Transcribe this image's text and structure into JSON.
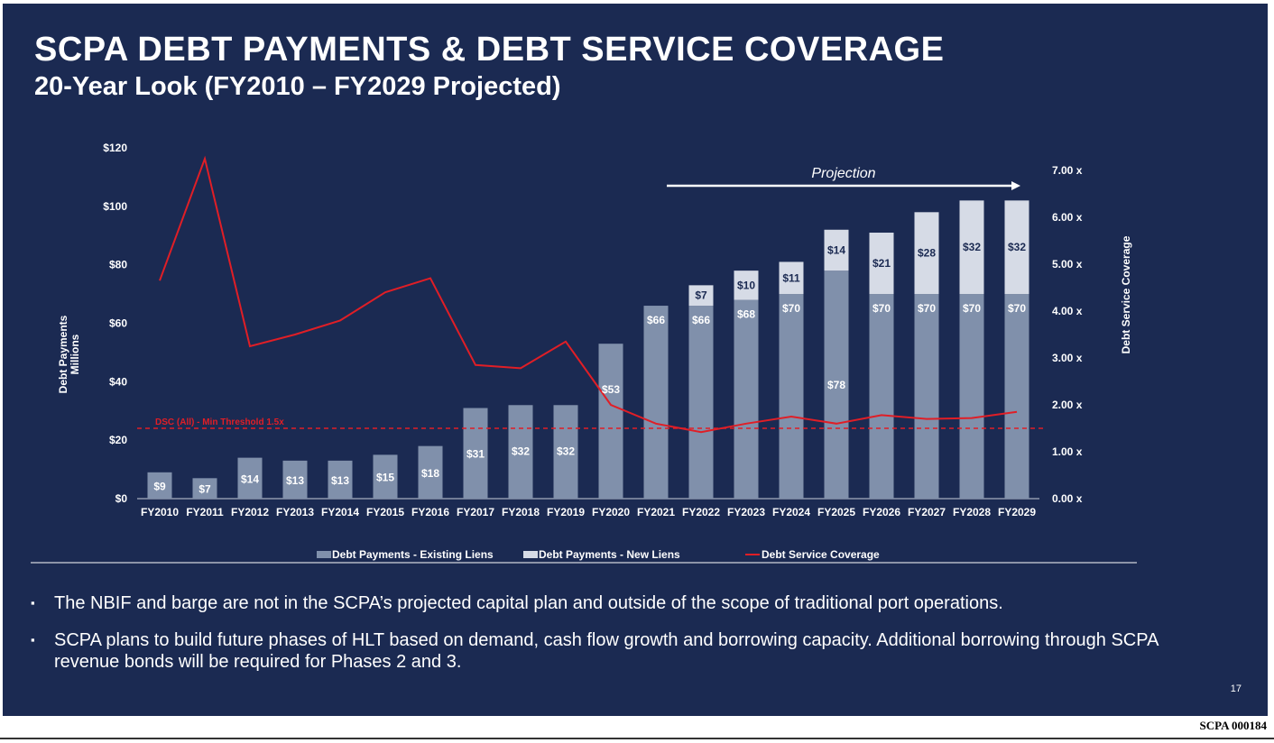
{
  "slide": {
    "title": "SCPA DEBT PAYMENTS & DEBT SERVICE COVERAGE",
    "subtitle": "20-Year Look (FY2010 – FY2029 Projected)",
    "bullets": [
      "The NBIF and barge are not in the SCPA’s projected capital plan and outside of the scope of traditional port operations.",
      "SCPA plans to build future phases of HLT based on demand, cash flow growth and borrowing capacity. Additional borrowing through SCPA revenue bonds will be required for Phases 2 and 3."
    ],
    "bullet_mark": "▪",
    "page_number": "17",
    "bates": "SCPA 000184"
  },
  "chart_data": {
    "type": "bar",
    "stacked": true,
    "categories": [
      "FY2010",
      "FY2011",
      "FY2012",
      "FY2013",
      "FY2014",
      "FY2015",
      "FY2016",
      "FY2017",
      "FY2018",
      "FY2019",
      "FY2020",
      "FY2021",
      "FY2022",
      "FY2023",
      "FY2024",
      "FY2025",
      "FY2026",
      "FY2027",
      "FY2028",
      "FY2029"
    ],
    "series": [
      {
        "name": "Debt Payments - Existing Liens",
        "type": "bar",
        "color": "#8090ab",
        "values": [
          9,
          7,
          14,
          13,
          13,
          15,
          18,
          31,
          32,
          32,
          53,
          66,
          66,
          68,
          70,
          78,
          70,
          70,
          70,
          70
        ]
      },
      {
        "name": "Debt Payments - New Liens",
        "type": "bar",
        "color": "#d6dbe6",
        "values": [
          0,
          0,
          0,
          0,
          0,
          0,
          0,
          0,
          0,
          0,
          0,
          0,
          7,
          10,
          11,
          14,
          21,
          28,
          32,
          32
        ]
      },
      {
        "name": "Debt Service Coverage",
        "type": "line",
        "axis": "right",
        "color": "#e01e26",
        "values": [
          4.65,
          7.25,
          3.25,
          3.5,
          3.8,
          4.4,
          4.7,
          2.85,
          2.78,
          3.35,
          2.0,
          1.6,
          1.42,
          1.6,
          1.75,
          1.6,
          1.78,
          1.7,
          1.72,
          1.85
        ]
      }
    ],
    "bar_labels": {
      "existing": [
        "$9",
        "$7",
        "$14",
        "$13",
        "$13",
        "$15",
        "$18",
        "$31",
        "$32",
        "$32",
        "$53",
        "$66",
        "$66",
        "$68",
        "$70",
        "$78",
        "$70",
        "$70",
        "$70",
        "$70"
      ],
      "new": [
        "",
        "",
        "",
        "",
        "",
        "",
        "",
        "",
        "",
        "",
        "",
        "",
        "$7",
        "$10",
        "$11",
        "$14",
        "$21",
        "$28",
        "$32",
        "$32"
      ]
    },
    "y_left": {
      "label_line1": "Debt Payments",
      "label_line2": "Millions",
      "ylim": [
        0,
        120
      ],
      "ticks": [
        0,
        20,
        40,
        60,
        80,
        100,
        120
      ],
      "tick_labels": [
        "$0",
        "$20",
        "$40",
        "$60",
        "$80",
        "$100",
        "$120"
      ]
    },
    "y_right": {
      "label": "Debt Service Coverage",
      "ylim": [
        0,
        7
      ],
      "ticks": [
        0,
        1,
        2,
        3,
        4,
        5,
        6,
        7
      ],
      "tick_labels": [
        "0.00 x",
        "1.00 x",
        "2.00 x",
        "3.00 x",
        "4.00 x",
        "5.00 x",
        "6.00 x",
        "7.00 x"
      ]
    },
    "threshold": {
      "value": 1.5,
      "axis": "right",
      "label": "DSC (All) - Min Threshold 1.5x",
      "color": "#e01e26"
    },
    "projection": {
      "label": "Projection",
      "from": "FY2021",
      "to": "FY2029"
    },
    "legend": [
      "Debt Payments - Existing Liens",
      "Debt Payments - New Liens",
      "Debt Service Coverage"
    ],
    "legend_position": "bottom"
  }
}
